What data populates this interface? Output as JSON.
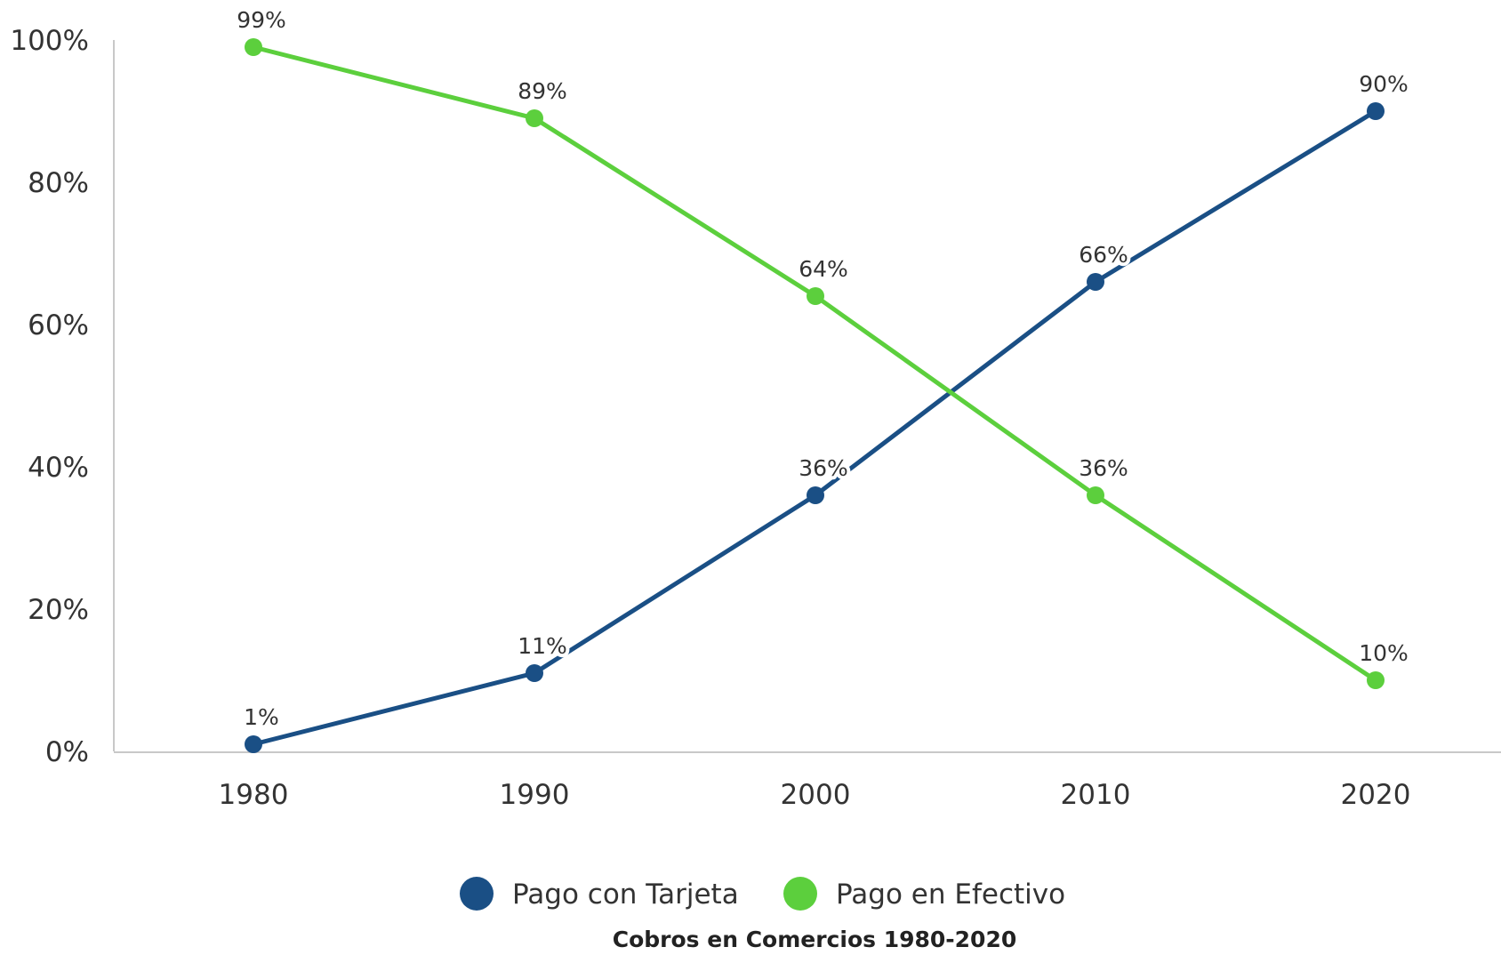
{
  "chart_data": {
    "type": "line",
    "title": "",
    "caption": "Cobros en Comercios 1980-2020",
    "xlabel": "",
    "ylabel": "",
    "categories": [
      "1980",
      "1990",
      "2000",
      "2010",
      "2020"
    ],
    "ylim": [
      0,
      100
    ],
    "y_ticks": [
      0,
      20,
      40,
      60,
      80,
      100
    ],
    "y_tick_labels": [
      "0%",
      "20%",
      "40%",
      "60%",
      "80%",
      "100%"
    ],
    "grid": false,
    "legend_position": "bottom",
    "series": [
      {
        "name": "Pago con Tarjeta",
        "color": "#1a4f85",
        "values": [
          1,
          11,
          36,
          66,
          90
        ],
        "labels": [
          "1%",
          "11%",
          "36%",
          "66%",
          "90%"
        ]
      },
      {
        "name": "Pago en Efectivo",
        "color": "#5ccf3d",
        "values": [
          99,
          89,
          64,
          36,
          10
        ],
        "labels": [
          "99%",
          "89%",
          "64%",
          "36%",
          "10%"
        ]
      }
    ]
  }
}
